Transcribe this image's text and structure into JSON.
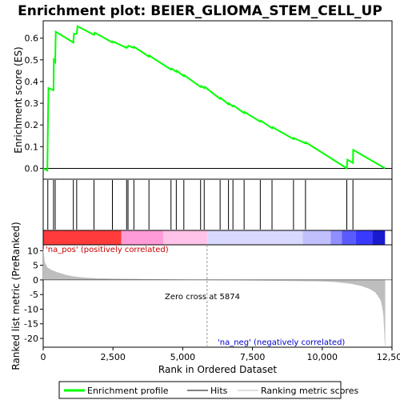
{
  "chart_data": {
    "type": "line",
    "title": "Enrichment plot: BEIER_GLIOMA_STEM_CELL_UP",
    "xlabel": "Rank in Ordered Dataset",
    "xlim": [
      0,
      12500
    ],
    "x_ticks": [
      0,
      2500,
      5000,
      7500,
      10000,
      12500
    ],
    "x_tick_labels": [
      "0",
      "2,500",
      "5,000",
      "7,500",
      "10,000",
      "12,500"
    ],
    "es_panel": {
      "ylabel": "Enrichment score (ES)",
      "ylim": [
        -0.05,
        0.68
      ],
      "y_ticks": [
        0.0,
        0.1,
        0.2,
        0.3,
        0.4,
        0.5,
        0.6
      ],
      "y_tick_labels": [
        "0.0",
        "0.1",
        "0.2",
        "0.3",
        "0.4",
        "0.5",
        "0.6"
      ],
      "series": [
        {
          "name": "Enrichment profile",
          "color": "#00ff00",
          "x": [
            0,
            150,
            165,
            190,
            370,
            380,
            430,
            450,
            1080,
            1100,
            1200,
            1230,
            1820,
            1850,
            2480,
            2500,
            2990,
            3000,
            3040,
            3060,
            3250,
            3260,
            3790,
            3800,
            4580,
            4600,
            4770,
            4780,
            5040,
            5050,
            5640,
            5660,
            5770,
            5790,
            6340,
            6360,
            6640,
            6650,
            6800,
            6820,
            7200,
            7210,
            7780,
            7800,
            8200,
            8210,
            8970,
            8980,
            9400,
            9410,
            10880,
            10900,
            11100,
            11110,
            12250
          ],
          "y": [
            0.0,
            -0.01,
            0.18,
            0.37,
            0.36,
            0.5,
            0.49,
            0.63,
            0.58,
            0.62,
            0.62,
            0.655,
            0.615,
            0.625,
            0.58,
            0.585,
            0.555,
            0.56,
            0.56,
            0.565,
            0.555,
            0.56,
            0.515,
            0.52,
            0.455,
            0.46,
            0.445,
            0.45,
            0.425,
            0.43,
            0.375,
            0.38,
            0.37,
            0.375,
            0.32,
            0.325,
            0.295,
            0.3,
            0.285,
            0.29,
            0.255,
            0.26,
            0.215,
            0.22,
            0.185,
            0.19,
            0.135,
            0.14,
            0.115,
            0.12,
            0.0,
            0.04,
            0.025,
            0.085,
            0.0
          ]
        }
      ]
    },
    "hits": {
      "name": "Hits",
      "color": "#000000",
      "x": [
        165,
        370,
        430,
        1080,
        1200,
        1820,
        2480,
        2990,
        3040,
        3250,
        3790,
        4580,
        4770,
        5040,
        5640,
        5770,
        6340,
        6640,
        6800,
        7200,
        7780,
        8200,
        8970,
        9400,
        10880,
        11100
      ]
    },
    "color_bar": {
      "segments": [
        {
          "from": 0,
          "to": 2800,
          "color": "#ff3b3b"
        },
        {
          "from": 2800,
          "to": 4300,
          "color": "#ff9bd6"
        },
        {
          "from": 4300,
          "to": 5874,
          "color": "#ffc2e8"
        },
        {
          "from": 5874,
          "to": 9300,
          "color": "#d9d9ff"
        },
        {
          "from": 9300,
          "to": 10300,
          "color": "#c0c0ff"
        },
        {
          "from": 10300,
          "to": 10700,
          "color": "#8f8fff"
        },
        {
          "from": 10700,
          "to": 11200,
          "color": "#5a5aff"
        },
        {
          "from": 11200,
          "to": 11800,
          "color": "#3a3aff"
        },
        {
          "from": 11800,
          "to": 12250,
          "color": "#1a1ad0"
        }
      ]
    },
    "metric_panel": {
      "ylabel": "Ranked list metric (PreRanked)",
      "ylim": [
        -23,
        12
      ],
      "y_ticks": [
        10,
        5,
        0,
        -5,
        -10,
        -15,
        -20
      ],
      "y_tick_labels": [
        "10",
        "5",
        "0",
        "-5",
        "-10",
        "-15",
        "-20"
      ],
      "series": [
        {
          "name": "Ranking metric scores",
          "color": "#bebebe",
          "x": [
            0,
            50,
            150,
            300,
            500,
            800,
            1100,
            1500,
            2000,
            2500,
            3000,
            4000,
            5000,
            5874,
            7000,
            8000,
            9000,
            10000,
            10500,
            11000,
            11400,
            11700,
            11900,
            12000,
            12100,
            12150,
            12200,
            12230,
            12250
          ],
          "y": [
            10.5,
            6.0,
            4.2,
            3.3,
            2.6,
            1.7,
            1.1,
            0.7,
            0.45,
            0.35,
            0.3,
            0.15,
            0.05,
            0.0,
            -0.1,
            -0.2,
            -0.3,
            -0.45,
            -0.7,
            -1.2,
            -2.0,
            -3.0,
            -4.2,
            -5.5,
            -7.0,
            -9.0,
            -12.0,
            -18.0,
            -22.5
          ]
        }
      ],
      "annotations": {
        "pos_label": "'na_pos' (positively correlated)",
        "neg_label": "'na_neg' (negatively correlated)",
        "zero_cross": "Zero cross at 5874",
        "zero_cross_x": 5874
      }
    },
    "legend": {
      "placement": "bottom",
      "entries": [
        "Enrichment profile",
        "Hits",
        "Ranking metric scores"
      ]
    }
  }
}
